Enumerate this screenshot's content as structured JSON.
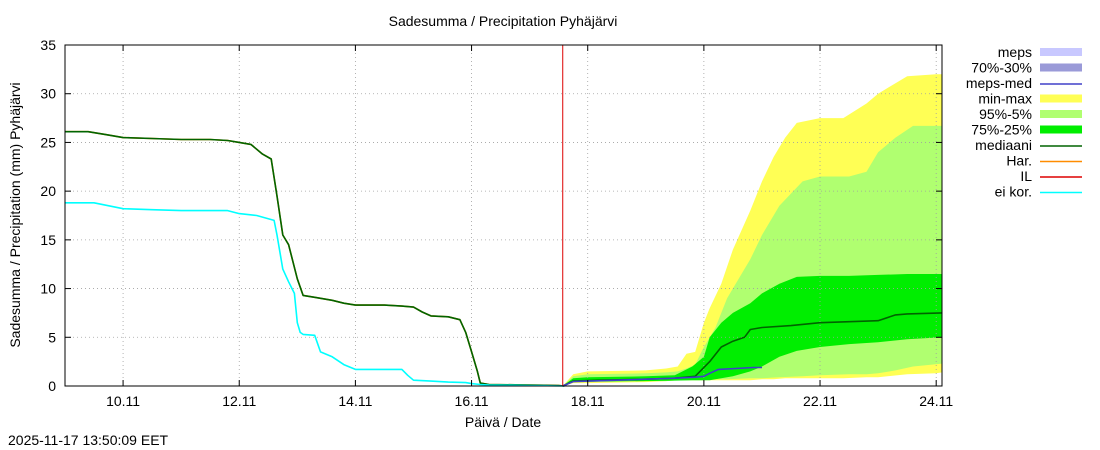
{
  "chart_data": {
    "type": "area",
    "title": "Sadesumma / Precipitation  Pyhäjärvi",
    "ylabel": "Sadesumma / Precipitation (mm)  Pyhäjärvi",
    "xlabel": "Päivä / Date",
    "ylim": [
      0,
      35
    ],
    "xlim": [
      9.0,
      24.1
    ],
    "x_unit": "day of November 2025",
    "yticks": [
      "0",
      "5",
      "10",
      "15",
      "20",
      "25",
      "30",
      "35"
    ],
    "xticks": [
      {
        "x": 10,
        "label": "10.11"
      },
      {
        "x": 12,
        "label": "12.11"
      },
      {
        "x": 14,
        "label": "14.11"
      },
      {
        "x": 16,
        "label": "16.11"
      },
      {
        "x": 18,
        "label": "18.11"
      },
      {
        "x": 20,
        "label": "20.11"
      },
      {
        "x": 22,
        "label": "22.11"
      },
      {
        "x": 24,
        "label": "24.11"
      }
    ],
    "grid": true,
    "now_line_x": 17.57,
    "legend": [
      {
        "key": "meps",
        "label": "meps",
        "color": "#c8c8ff",
        "kind": "box"
      },
      {
        "key": "meps_iq",
        "label": "70%-30%",
        "color": "#9a9ad8",
        "kind": "box"
      },
      {
        "key": "meps_med",
        "label": "meps-med",
        "color": "#4040c8",
        "kind": "line"
      },
      {
        "key": "minmax",
        "label": "min-max",
        "color": "#ffff55",
        "kind": "box"
      },
      {
        "key": "p95_5",
        "label": "95%-5%",
        "color": "#b0ff70",
        "kind": "box"
      },
      {
        "key": "p75_25",
        "label": "75%-25%",
        "color": "#00ee00",
        "kind": "box"
      },
      {
        "key": "mediaani",
        "label": "mediaani",
        "color": "#006400",
        "kind": "line"
      },
      {
        "key": "har",
        "label": "Har.",
        "color": "#ff8c00",
        "kind": "line"
      },
      {
        "key": "il",
        "label": "IL",
        "color": "#dd0000",
        "kind": "line"
      },
      {
        "key": "eikor",
        "label": "ei kor.",
        "color": "#00ffff",
        "kind": "line"
      }
    ],
    "series": [
      {
        "name": "Har.",
        "color": "#ff8c00",
        "role": "line",
        "x": [
          9.0,
          9.4,
          9.7,
          10.0,
          10.5,
          11.0,
          11.5,
          11.8,
          12.0,
          12.2,
          12.4,
          12.55,
          12.65,
          12.75,
          12.85,
          13.0,
          13.1,
          13.3,
          13.6,
          13.8,
          14.0,
          14.5,
          14.8,
          15.0,
          15.15,
          15.3,
          15.6,
          15.8,
          15.9,
          16.0,
          16.1,
          16.15,
          16.3,
          17.0,
          17.5,
          17.6
        ],
        "values": [
          26.1,
          26.1,
          25.8,
          25.5,
          25.4,
          25.3,
          25.3,
          25.2,
          25.0,
          24.8,
          23.8,
          23.3,
          19.5,
          15.5,
          14.5,
          11.0,
          9.3,
          9.1,
          8.8,
          8.5,
          8.3,
          8.3,
          8.2,
          8.1,
          7.6,
          7.2,
          7.1,
          6.8,
          5.5,
          3.5,
          1.5,
          0.3,
          0.15,
          0.1,
          0.05,
          0.0
        ]
      },
      {
        "name": "mediaani (history)",
        "color": "#006400",
        "role": "line",
        "x": [
          9.0,
          9.4,
          9.7,
          10.0,
          10.5,
          11.0,
          11.5,
          11.8,
          12.0,
          12.2,
          12.4,
          12.55,
          12.65,
          12.75,
          12.85,
          13.0,
          13.1,
          13.3,
          13.6,
          13.8,
          14.0,
          14.5,
          14.8,
          15.0,
          15.15,
          15.3,
          15.6,
          15.8,
          15.9,
          16.0,
          16.1,
          16.15,
          16.3,
          17.0,
          17.5,
          17.6
        ],
        "values": [
          26.1,
          26.1,
          25.8,
          25.5,
          25.4,
          25.3,
          25.3,
          25.2,
          25.0,
          24.8,
          23.8,
          23.3,
          19.5,
          15.5,
          14.5,
          11.0,
          9.3,
          9.1,
          8.8,
          8.5,
          8.3,
          8.3,
          8.2,
          8.1,
          7.6,
          7.2,
          7.1,
          6.8,
          5.5,
          3.5,
          1.5,
          0.3,
          0.15,
          0.1,
          0.05,
          0.0
        ]
      },
      {
        "name": "ei kor.",
        "color": "#00ffff",
        "role": "line",
        "x": [
          9.0,
          9.5,
          10.0,
          10.5,
          11.0,
          11.5,
          11.8,
          12.0,
          12.3,
          12.6,
          12.65,
          12.75,
          12.85,
          12.95,
          13.0,
          13.05,
          13.1,
          13.3,
          13.4,
          13.6,
          13.8,
          14.0,
          14.5,
          14.8,
          14.9,
          15.0,
          15.3,
          15.6,
          15.9,
          16.0,
          16.15,
          16.3,
          17.0,
          17.6
        ],
        "values": [
          18.8,
          18.8,
          18.2,
          18.1,
          18.0,
          18.0,
          18.0,
          17.7,
          17.5,
          17.0,
          15.5,
          12.0,
          10.7,
          9.5,
          6.5,
          5.5,
          5.3,
          5.2,
          3.5,
          3.0,
          2.2,
          1.7,
          1.7,
          1.7,
          1.1,
          0.6,
          0.5,
          0.4,
          0.35,
          0.25,
          0.15,
          0.1,
          0.05,
          0.0
        ]
      },
      {
        "name": "mediaani (forecast)",
        "color": "#006400",
        "role": "line",
        "x": [
          17.57,
          17.75,
          18.2,
          19.0,
          19.5,
          19.85,
          20.1,
          20.3,
          20.5,
          20.7,
          20.8,
          21.0,
          21.5,
          22.0,
          22.5,
          23.0,
          23.3,
          23.5,
          24.1
        ],
        "values": [
          0.0,
          0.5,
          0.6,
          0.7,
          0.8,
          1.0,
          2.5,
          4.0,
          4.6,
          5.0,
          5.8,
          6.0,
          6.2,
          6.5,
          6.6,
          6.7,
          7.3,
          7.4,
          7.5
        ]
      },
      {
        "name": "meps-med",
        "color": "#4040c8",
        "role": "line",
        "x": [
          17.57,
          17.75,
          18.3,
          19.0,
          19.5,
          19.85,
          20.0,
          20.1,
          20.25,
          20.7,
          20.85,
          21.0
        ],
        "values": [
          0.0,
          0.45,
          0.55,
          0.7,
          0.8,
          0.9,
          1.0,
          1.3,
          1.7,
          1.85,
          1.9,
          1.9
        ]
      }
    ],
    "bands": [
      {
        "name": "min-max",
        "color": "#ffff55",
        "x": [
          17.57,
          17.75,
          18.0,
          19.0,
          19.35,
          19.55,
          19.7,
          19.85,
          20.0,
          20.1,
          20.3,
          20.5,
          20.8,
          21.0,
          21.2,
          21.4,
          21.6,
          22.0,
          22.4,
          22.8,
          23.0,
          23.5,
          24.0,
          24.1
        ],
        "high": [
          0.0,
          1.2,
          1.5,
          1.6,
          1.8,
          2.0,
          3.3,
          3.5,
          6.5,
          8.0,
          10.5,
          14.0,
          18.0,
          21.0,
          23.5,
          25.5,
          27.0,
          27.5,
          27.5,
          29.0,
          30.0,
          31.8,
          32.0,
          32.0
        ],
        "low": [
          0.0,
          0.3,
          0.3,
          0.4,
          0.5,
          0.6,
          0.6,
          0.6,
          0.6,
          0.6,
          0.6,
          0.6,
          0.6,
          0.7,
          0.7,
          0.8,
          0.8,
          0.8,
          0.8,
          0.9,
          0.9,
          1.2,
          1.3,
          1.4
        ]
      },
      {
        "name": "95%-5%",
        "color": "#b0ff70",
        "x": [
          17.57,
          17.75,
          18.0,
          19.0,
          19.35,
          19.55,
          19.7,
          19.85,
          20.0,
          20.2,
          20.4,
          20.8,
          21.0,
          21.3,
          21.7,
          22.0,
          22.5,
          22.8,
          23.0,
          23.3,
          23.6,
          24.1
        ],
        "high": [
          0.0,
          1.0,
          1.2,
          1.3,
          1.4,
          1.5,
          1.8,
          2.2,
          4.0,
          6.0,
          9.0,
          13.0,
          15.5,
          18.5,
          21.0,
          21.5,
          21.5,
          22.0,
          24.0,
          25.5,
          26.7,
          26.7
        ],
        "low": [
          0.0,
          0.4,
          0.4,
          0.5,
          0.5,
          0.6,
          0.6,
          0.6,
          0.6,
          0.7,
          0.7,
          0.8,
          0.8,
          0.9,
          1.0,
          1.1,
          1.2,
          1.2,
          1.3,
          1.6,
          2.0,
          2.3
        ]
      },
      {
        "name": "75%-25%",
        "color": "#00ee00",
        "x": [
          17.57,
          17.75,
          18.0,
          19.0,
          19.5,
          19.8,
          20.0,
          20.1,
          20.3,
          20.5,
          20.8,
          21.0,
          21.3,
          21.6,
          22.0,
          22.5,
          23.0,
          23.5,
          24.1
        ],
        "high": [
          0.0,
          0.8,
          0.9,
          1.0,
          1.1,
          2.0,
          3.0,
          5.0,
          6.5,
          7.5,
          8.5,
          9.5,
          10.5,
          11.2,
          11.3,
          11.3,
          11.4,
          11.5,
          11.5
        ],
        "low": [
          0.0,
          0.4,
          0.45,
          0.5,
          0.55,
          0.6,
          0.6,
          0.6,
          0.8,
          1.0,
          1.5,
          2.0,
          3.0,
          3.6,
          4.0,
          4.3,
          4.5,
          4.8,
          5.0
        ]
      }
    ]
  },
  "footer": {
    "timestamp": "2025-11-17 13:50:09 EET"
  }
}
